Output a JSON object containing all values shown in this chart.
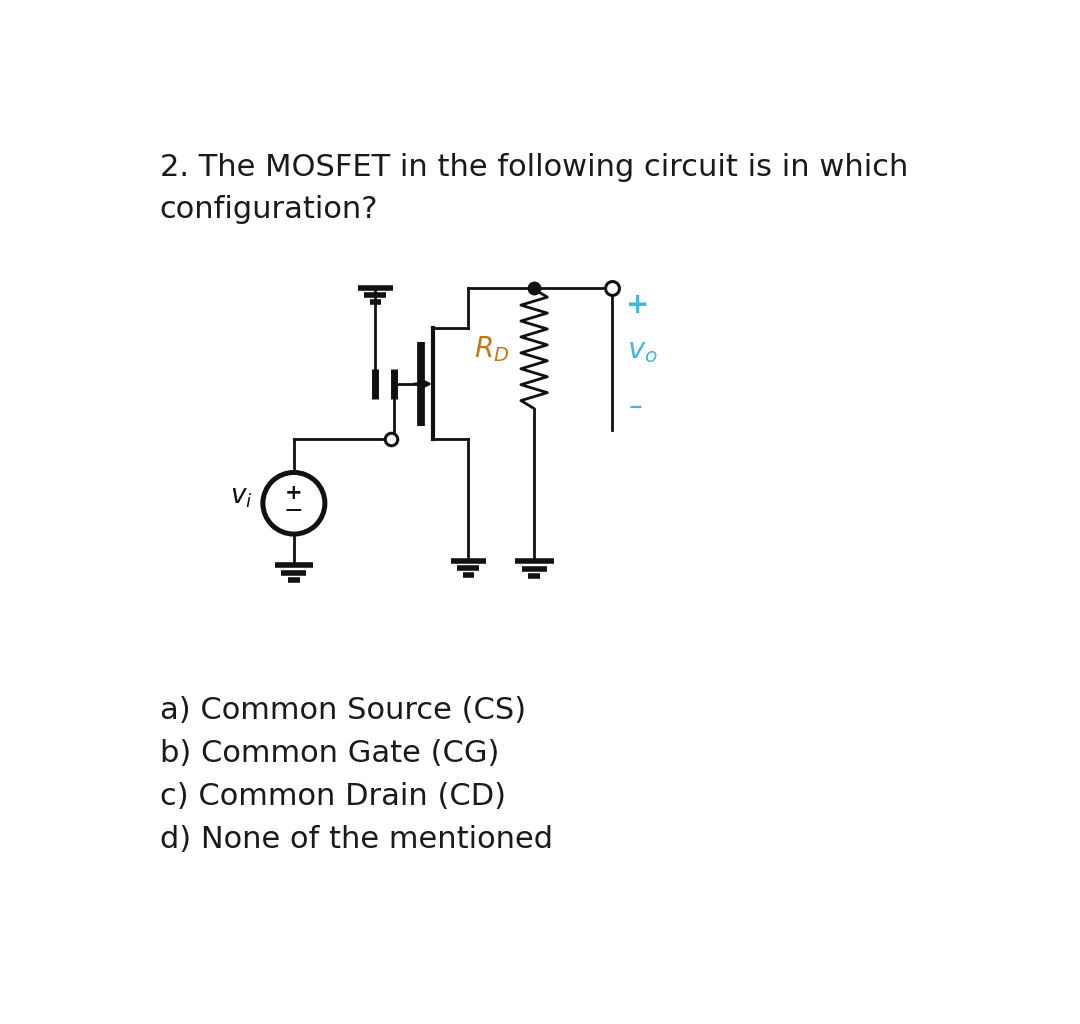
{
  "title_line1": "2. The MOSFET in the following circuit is in which",
  "title_line2": "configuration?",
  "options": [
    "a) Common Source (CS)",
    "b) Common Gate (CG)",
    "c) Common Drain (CD)",
    "d) None of the mentioned"
  ],
  "title_fontsize": 22,
  "options_fontsize": 22,
  "bg_color": "#ffffff",
  "text_color": "#1a1a1a",
  "circuit_color": "#111111",
  "label_RD_color": "#c07820",
  "label_vo_color": "#45b8d5",
  "label_plus_color": "#45b8d5",
  "label_minus_color": "#45b8d5"
}
